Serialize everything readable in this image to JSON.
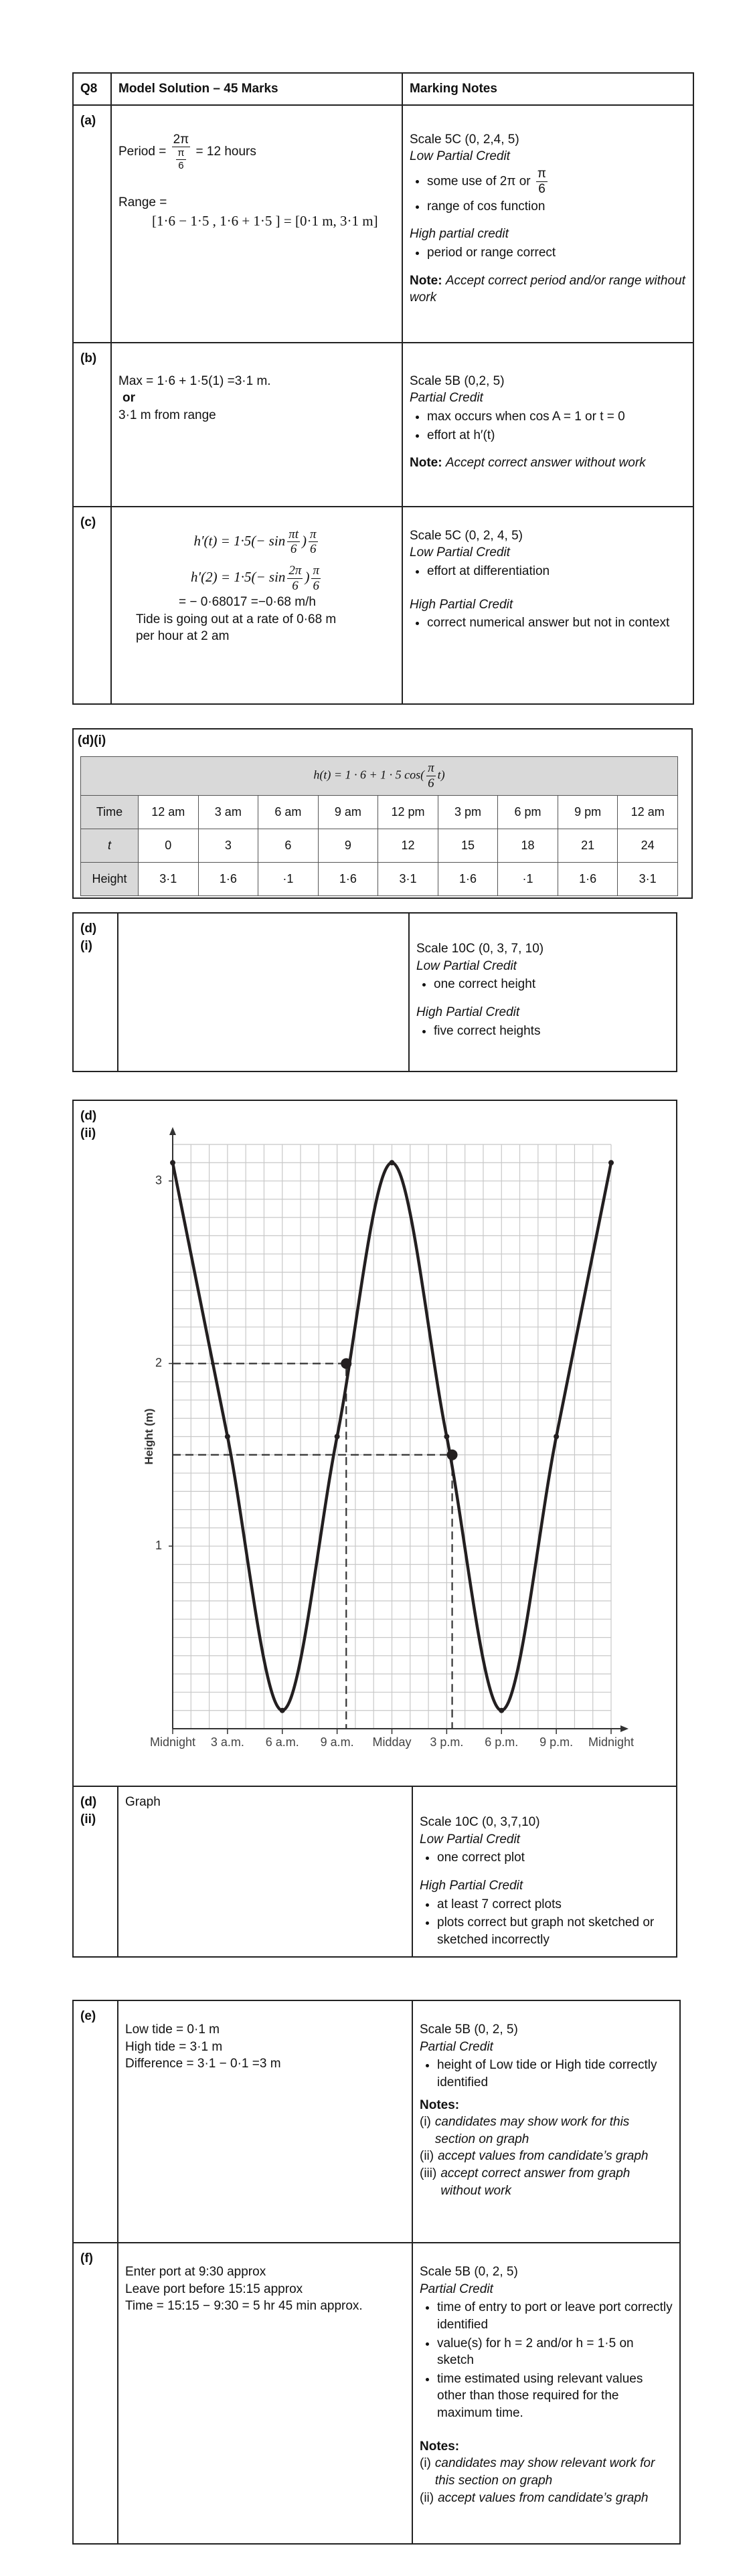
{
  "q8": {
    "header": {
      "q": "Q8",
      "solution": "Model Solution – 45 Marks",
      "notes": "Marking Notes"
    },
    "a": {
      "label": "(a)",
      "period_lead": "Period =",
      "period_num": "2π",
      "period_den_num": "π",
      "period_den_den": "6",
      "period_tail": "= 12 hours",
      "range_lead": "Range =",
      "range_expr": "[1·6 − 1·5 , 1·6 + 1·5 ] = [0·1 m, 3·1 m]",
      "scale": "Scale 5C (0, 2,4, 5)",
      "low": "Low Partial Credit",
      "low_1": "some use of 2π or",
      "low_1_num": "π",
      "low_1_den": "6",
      "low_2": "range of cos  function",
      "high": "High partial credit",
      "high_1": "period or range correct",
      "note_label": "Note:",
      "note": "Accept correct period and/or range without work"
    },
    "b": {
      "label": "(b)",
      "line1": "Max = 1·6 + 1·5(1) =3·1 m.",
      "or": "or",
      "line2": "3·1 m from range",
      "scale": "Scale 5B (0,2, 5)",
      "partial": "Partial Credit",
      "item_1": "max occurs when cos A = 1 or t = 0",
      "item_2": "effort at h′(t)",
      "note_label": "Note:",
      "note": "Accept correct answer without work"
    },
    "c": {
      "label": "(c)",
      "d1_lead": "h′(t) = 1·5(− sin",
      "d1_num": "πt",
      "d1_den": "6",
      "d1_close": ")",
      "d1_num2": "π",
      "d1_den2": "6",
      "d2_lead": "h′(2) = 1·5(− sin",
      "d2_num": "2π",
      "d2_den": "6",
      "d2_close": ")",
      "d2_num2": "π",
      "d2_den2": "6",
      "value": "= − 0·68017  =−0·68 m/h",
      "context": "Tide is going out at a rate of 0·68 m per hour at 2 am",
      "scale": "Scale 5C (0, 2, 4, 5)",
      "low": "Low Partial Credit",
      "low_1": "effort at differentiation",
      "high": "High Partial Credit",
      "high_1": "correct numerical answer but not in context"
    }
  },
  "di": {
    "label": "(d)(i)",
    "formula_lead": "h(t) = 1 · 6 + 1 · 5 cos(",
    "formula_num": "π",
    "formula_den": "6",
    "formula_tail": "t)",
    "rows": [
      [
        "Time",
        "12 am",
        "3 am",
        "6 am",
        "9 am",
        "12 pm",
        "3 pm",
        "6 pm",
        "9 pm",
        "12 am"
      ],
      [
        "t",
        "0",
        "3",
        "6",
        "9",
        "12",
        "15",
        "18",
        "21",
        "24"
      ],
      [
        "Height",
        "3·1",
        "1·6",
        "·1",
        "1·6",
        "3·1",
        "1·6",
        "·1",
        "1·6",
        "3·1"
      ]
    ]
  },
  "di_marking": {
    "label_1": "(d)",
    "label_2": "(i)",
    "scale": "Scale 10C (0, 3, 7, 10)",
    "low": "Low Partial Credit",
    "low_1": "one correct height",
    "high": "High Partial Credit",
    "high_1": "five correct heights"
  },
  "dii": {
    "label_1": "(d)",
    "label_2": "(ii)"
  },
  "dii_marking": {
    "label_1": "(d)",
    "label_2": "(ii)",
    "solution": "Graph",
    "scale": "Scale 10C (0, 3,7,10)",
    "low": "Low Partial Credit",
    "low_1": "one correct plot",
    "high": "High Partial Credit",
    "high_1": "at least 7 correct plots",
    "high_2": "plots correct but graph not sketched or sketched incorrectly"
  },
  "e": {
    "label": "(e)",
    "lines": [
      "Low tide = 0·1 m",
      "High tide = 3·1 m",
      "Difference = 3·1 − 0·1 =3 m"
    ],
    "scale": "Scale 5B (0, 2, 5)",
    "partial": "Partial Credit",
    "items": [
      "height of Low tide or High tide correctly identified"
    ],
    "notes_label": "Notes:",
    "notes": [
      {
        "num": "(i)",
        "text": "candidates may show  work for this section on graph"
      },
      {
        "num": "(ii)",
        "text": "accept values from candidate’s graph"
      },
      {
        "num": "(iii)",
        "text": "accept correct answer from graph without work"
      }
    ]
  },
  "f": {
    "label": "(f)",
    "lines": [
      "Enter port at 9:30 approx",
      "Leave port before 15:15 approx",
      "Time = 15:15 − 9:30 = 5 hr 45 min approx."
    ],
    "scale": "Scale 5B (0, 2, 5)",
    "partial": "Partial Credit",
    "items": [
      "time of entry to port or leave port correctly identified",
      "value(s) for h = 2 and/or h = 1·5 on sketch",
      "time estimated using relevant values other than those required for the maximum time."
    ],
    "notes_label": "Notes:",
    "notes": [
      {
        "num": "(i)",
        "text": "candidates may show relevant  work for this section on graph"
      },
      {
        "num": "(ii)",
        "text": "accept values from candidate’s graph"
      }
    ]
  },
  "chart_data": {
    "type": "line",
    "x": [
      0,
      3,
      6,
      9,
      12,
      15,
      18,
      21,
      24
    ],
    "values": [
      3.1,
      1.6,
      0.1,
      1.6,
      3.1,
      1.6,
      0.1,
      1.6,
      3.1
    ],
    "xlim": [
      0,
      24
    ],
    "ylim": [
      0,
      3.2
    ],
    "xticks": [
      {
        "value": 0,
        "label": "Midnight"
      },
      {
        "value": 3,
        "label": "3 a.m."
      },
      {
        "value": 6,
        "label": "6 a.m."
      },
      {
        "value": 9,
        "label": "9 a.m."
      },
      {
        "value": 12,
        "label": "Midday"
      },
      {
        "value": 15,
        "label": "3 p.m."
      },
      {
        "value": 18,
        "label": "6 p.m."
      },
      {
        "value": 21,
        "label": "9 p.m."
      },
      {
        "value": 24,
        "label": "Midnight"
      }
    ],
    "yticks": [
      1,
      2,
      3
    ],
    "y_label": "Height (m)",
    "grid": true,
    "color": "#231f20",
    "readings": [
      {
        "x": 9.5,
        "y": 2
      },
      {
        "x": 15.3,
        "y": 1.5
      }
    ]
  }
}
